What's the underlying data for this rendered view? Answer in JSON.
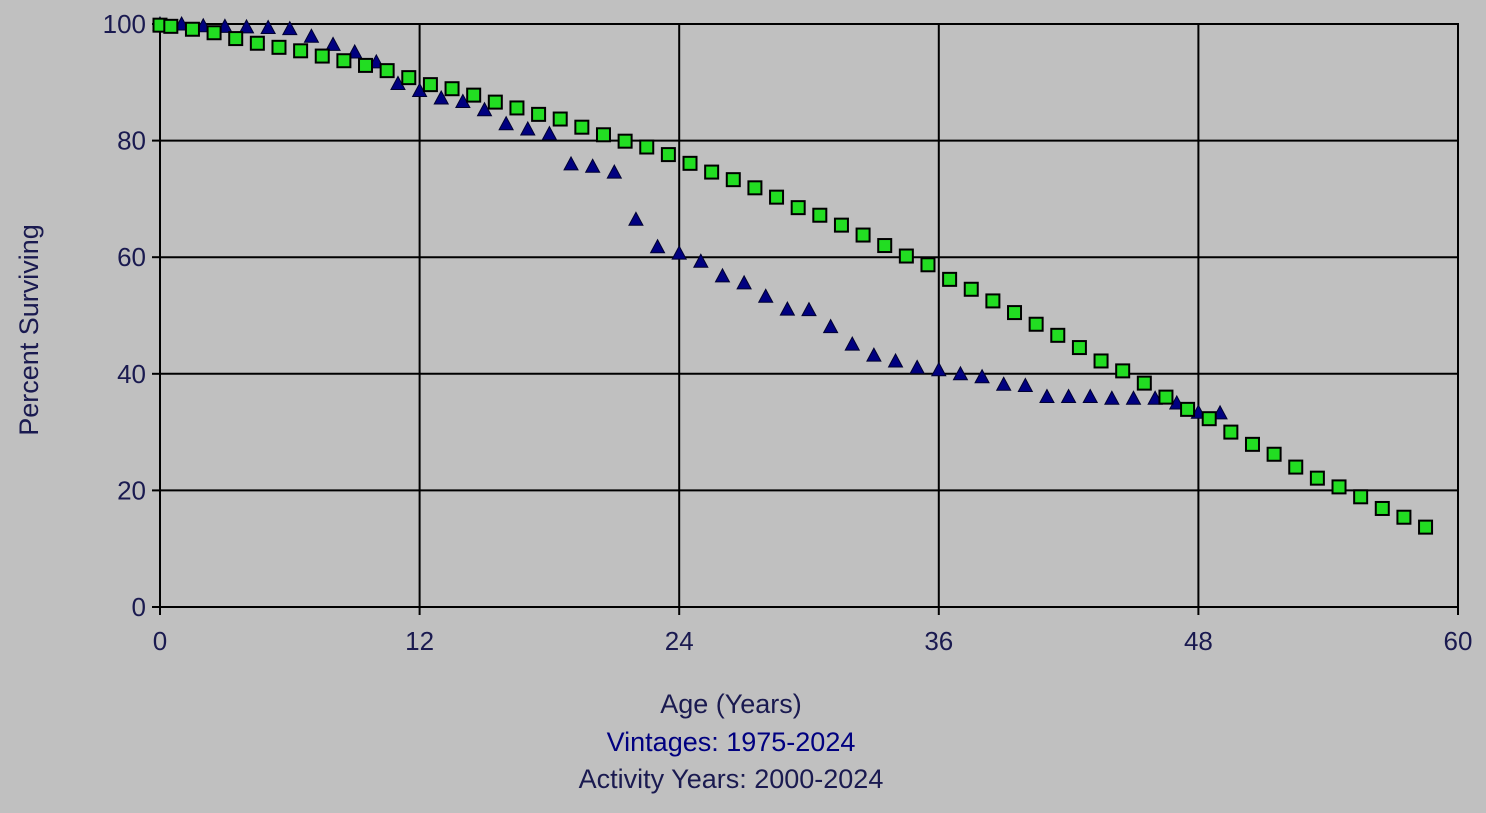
{
  "chart_data": {
    "type": "scatter",
    "xlabel": "Age (Years)",
    "ylabel": "Percent Surviving",
    "xlim": [
      0,
      60
    ],
    "ylim": [
      0,
      100
    ],
    "xticks": [
      0,
      12,
      24,
      36,
      48,
      60
    ],
    "yticks": [
      0,
      20,
      40,
      60,
      80,
      100
    ],
    "xtick_labels": [
      "0",
      "12",
      "24",
      "36",
      "48",
      "60"
    ],
    "ytick_labels": [
      "0",
      "20",
      "40",
      "60",
      "80",
      "100"
    ],
    "grid": true,
    "captions": {
      "vintages": "Vintages: 1975-2024",
      "activity": "Activity Years: 2000-2024"
    },
    "series": [
      {
        "marker": "triangle",
        "color": "#000080",
        "x": [
          0,
          1,
          2,
          3,
          4,
          5,
          6,
          7,
          8,
          9,
          10,
          11,
          12,
          13,
          14,
          15,
          16,
          17,
          18,
          19,
          20,
          21,
          22,
          23,
          24,
          25,
          26,
          27,
          28,
          29,
          30,
          31,
          32,
          33,
          34,
          35,
          36,
          37,
          38,
          39,
          40,
          41,
          42,
          43,
          44,
          45,
          46,
          47,
          48,
          49
        ],
        "y": [
          100,
          100,
          99.7,
          99.6,
          99.5,
          99.4,
          99.2,
          97.9,
          96.5,
          95.2,
          93.5,
          89.8,
          88.6,
          87.3,
          86.7,
          85.3,
          82.9,
          82.0,
          81.2,
          76.0,
          75.6,
          74.6,
          66.5,
          61.8,
          60.7,
          59.3,
          56.8,
          55.6,
          53.3,
          51.1,
          51.0,
          48.1,
          45.1,
          43.2,
          42.2,
          41.1,
          40.7,
          40.0,
          39.5,
          38.2,
          38.0,
          36.1,
          36.1,
          36.1,
          35.8,
          35.8,
          35.8,
          35.0,
          33.4,
          33.3
        ]
      },
      {
        "marker": "square",
        "color": "#22dd22",
        "x": [
          0,
          0.5,
          1.5,
          2.5,
          3.5,
          4.5,
          5.5,
          6.5,
          7.5,
          8.5,
          9.5,
          10.5,
          11.5,
          12.5,
          13.5,
          14.5,
          15.5,
          16.5,
          17.5,
          18.5,
          19.5,
          20.5,
          21.5,
          22.5,
          23.5,
          24.5,
          25.5,
          26.5,
          27.5,
          28.5,
          29.5,
          30.5,
          31.5,
          32.5,
          33.5,
          34.5,
          35.5,
          36.5,
          37.5,
          38.5,
          39.5,
          40.5,
          41.5,
          42.5,
          43.5,
          44.5,
          45.5,
          46.5,
          47.5,
          48.5,
          49.5,
          50.5,
          51.5,
          52.5,
          53.5,
          54.5,
          55.5,
          56.5,
          57.5,
          58.5
        ],
        "y": [
          99.8,
          99.6,
          99.1,
          98.5,
          97.5,
          96.7,
          96.0,
          95.4,
          94.5,
          93.7,
          92.9,
          92.0,
          90.8,
          89.6,
          88.9,
          87.8,
          86.6,
          85.6,
          84.5,
          83.7,
          82.3,
          81.0,
          79.9,
          78.9,
          77.6,
          76.1,
          74.6,
          73.3,
          71.9,
          70.3,
          68.5,
          67.2,
          65.5,
          63.8,
          62.0,
          60.2,
          58.7,
          56.2,
          54.5,
          52.5,
          50.5,
          48.5,
          46.6,
          44.5,
          42.2,
          40.5,
          38.4,
          36.0,
          33.9,
          32.3,
          30.0,
          27.9,
          26.2,
          24.0,
          22.1,
          20.6,
          18.9,
          16.9,
          15.4,
          13.7
        ]
      }
    ]
  }
}
